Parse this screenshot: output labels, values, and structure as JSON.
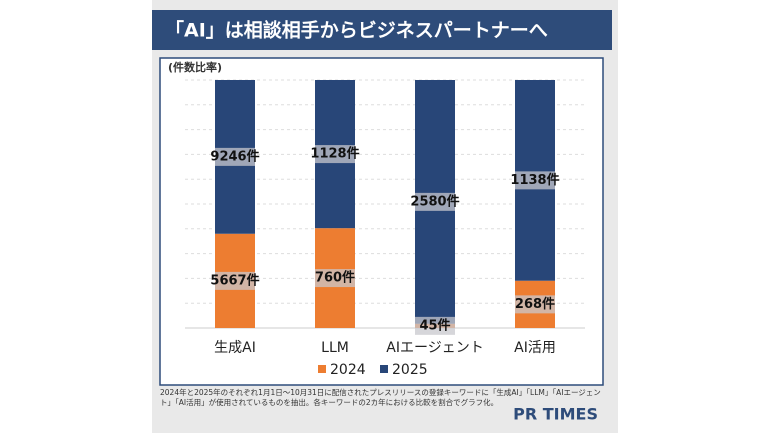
{
  "chart_data": {
    "type": "stacked_percent_bar",
    "title": "「AI」は相談相手からビジネスパートナーへ",
    "y_label": "(件数比率)",
    "categories": [
      "生成AI",
      "LLM",
      "AIエージェント",
      "AI活用"
    ],
    "series": [
      {
        "name": "2024",
        "color": "#ED7D31",
        "values": [
          5667,
          760,
          45,
          268
        ],
        "value_labels": [
          "5667件",
          "760件",
          "45件",
          "268件"
        ]
      },
      {
        "name": "2025",
        "color": "#284678",
        "values": [
          9246,
          1128,
          2580,
          1138
        ],
        "value_labels": [
          "9246件",
          "1128件",
          "2580件",
          "1138件"
        ]
      }
    ],
    "legend": "bottom",
    "footnote": "2024年と2025年のそれぞれ1月1日〜10月31日に配信されたプレスリリースの登録キーワードに「生成AI」「LLM」「AIエージェント」「AI活用」が使用されているものを抽出。各キーワードの2カ年における比較を割合でグラフ化。",
    "logo": "PR TIMES"
  }
}
